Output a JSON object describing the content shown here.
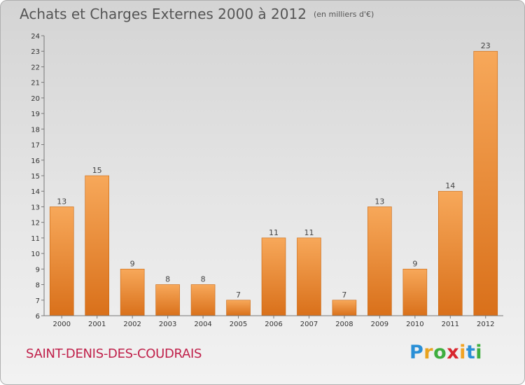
{
  "title": "Achats et Charges Externes 2000 à 2012",
  "unit_note": "(en milliers d'€)",
  "commune": "SAINT-DENIS-DES-COUDRAIS",
  "logo": {
    "letters": [
      "P",
      "r",
      "o",
      "x",
      "i",
      "t",
      "i"
    ],
    "colors": [
      "#2a8fd6",
      "#e8a320",
      "#3fae3f",
      "#d8262e",
      "#f2a323",
      "#2a8fd6",
      "#3fae3f"
    ]
  },
  "colors": {
    "bar_top": "#f7a85a",
    "bar_bottom": "#d9701a",
    "bar_edge": "#c9660f",
    "title": "#555555",
    "commune": "#c0204a"
  },
  "chart_data": {
    "type": "bar",
    "title": "Achats et Charges Externes 2000 à 2012",
    "subtitle": "(en milliers d'€)",
    "categories": [
      "2000",
      "2001",
      "2002",
      "2003",
      "2004",
      "2005",
      "2006",
      "2007",
      "2008",
      "2009",
      "2010",
      "2011",
      "2012"
    ],
    "values": [
      13,
      15,
      9,
      8,
      8,
      7,
      11,
      11,
      7,
      13,
      9,
      14,
      23
    ],
    "ylim": [
      6,
      24
    ],
    "yticks": [
      "6",
      "7",
      "8",
      "9",
      "10",
      "11",
      "12",
      "13",
      "14",
      "15",
      "16",
      "17",
      "18",
      "19",
      "20",
      "21",
      "22",
      "23",
      "24"
    ],
    "xlabel": "",
    "ylabel": "",
    "grid": false
  }
}
